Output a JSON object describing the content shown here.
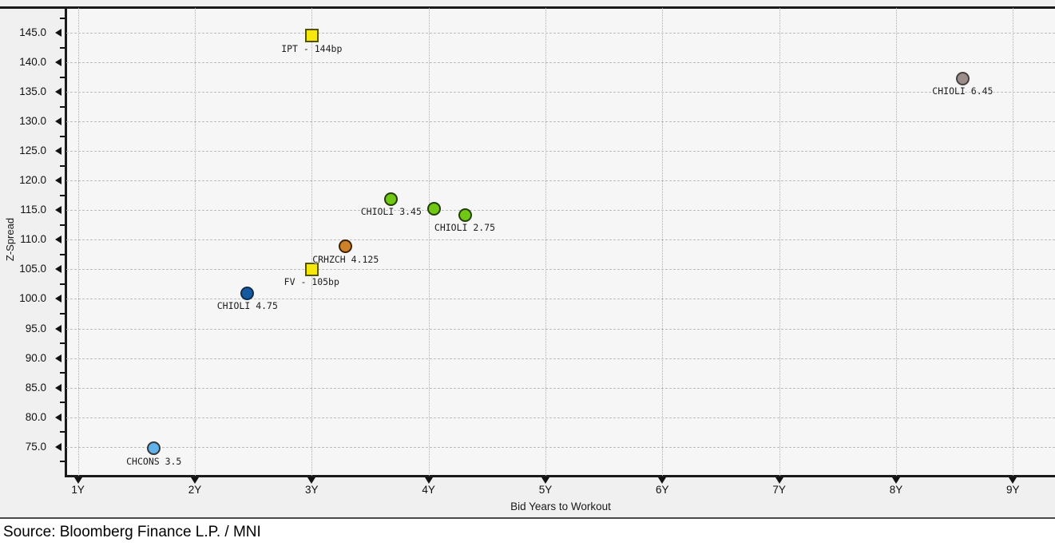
{
  "chart": {
    "y_axis_title": "Z-Spread",
    "x_axis_title": "Bid Years to Workout"
  },
  "caption": {
    "source_text": "Source: Bloomberg Finance L.P. / MNI"
  },
  "colors": {
    "axis": "#1a1a1a",
    "grid": "#b8b8b8",
    "plot_background": "#f5f6f5",
    "margin_background": "#eff0ef",
    "divider": "#4a4a4a"
  },
  "chart_data": {
    "type": "scatter",
    "title": "",
    "xlabel": "Bid Years to Workout",
    "ylabel": "Z-Spread",
    "xlim": [
      0.9,
      9.36
    ],
    "ylim": [
      70.1,
      149.2
    ],
    "grid": "major gridlines on, dashed horizontal / dotted vertical",
    "legend": "none; points labeled inline below markers",
    "x_ticks": [
      {
        "v": 1,
        "label": "1Y"
      },
      {
        "v": 2,
        "label": "2Y"
      },
      {
        "v": 3,
        "label": "3Y"
      },
      {
        "v": 4,
        "label": "4Y"
      },
      {
        "v": 5,
        "label": "5Y"
      },
      {
        "v": 6,
        "label": "6Y"
      },
      {
        "v": 7,
        "label": "7Y"
      },
      {
        "v": 8,
        "label": "8Y"
      },
      {
        "v": 9,
        "label": "9Y"
      }
    ],
    "y_ticks": [
      {
        "v": 75,
        "label": "75.0"
      },
      {
        "v": 80,
        "label": "80.0"
      },
      {
        "v": 85,
        "label": "85.0"
      },
      {
        "v": 90,
        "label": "90.0"
      },
      {
        "v": 95,
        "label": "95.0"
      },
      {
        "v": 100,
        "label": "100.0"
      },
      {
        "v": 105,
        "label": "105.0"
      },
      {
        "v": 110,
        "label": "110.0"
      },
      {
        "v": 115,
        "label": "115.0"
      },
      {
        "v": 120,
        "label": "120.0"
      },
      {
        "v": 125,
        "label": "125.0"
      },
      {
        "v": 130,
        "label": "130.0"
      },
      {
        "v": 135,
        "label": "135.0"
      },
      {
        "v": 140,
        "label": "140.0"
      },
      {
        "v": 145,
        "label": "145.0"
      }
    ],
    "y_minor_ticks": [
      72.5,
      77.5,
      82.5,
      87.5,
      92.5,
      97.5,
      102.5,
      107.5,
      112.5,
      117.5,
      122.5,
      127.5,
      132.5,
      137.5,
      142.5,
      147.5
    ],
    "points": [
      {
        "label": "CHCONS 3.5",
        "x": 1.65,
        "y": 74.7,
        "marker": "circle",
        "fill": "#62b1e8",
        "stroke": "#35383b"
      },
      {
        "label": "CHIOLI 4.75",
        "x": 2.45,
        "y": 101.0,
        "marker": "circle",
        "fill": "#155a9e",
        "stroke": "#0d2f55"
      },
      {
        "label": "FV - 105bp",
        "x": 3.0,
        "y": 105.0,
        "marker": "square",
        "fill": "#f6e70c",
        "stroke": "#52520f"
      },
      {
        "label": "IPT - 144bp",
        "x": 3.0,
        "y": 144.5,
        "marker": "square",
        "fill": "#f6e70c",
        "stroke": "#52520f"
      },
      {
        "label": "CRHZCH 4.125",
        "x": 3.29,
        "y": 108.9,
        "marker": "circle",
        "fill": "#cd8128",
        "stroke": "#3a2405"
      },
      {
        "label": "CHIOLI 3.45",
        "x": 3.68,
        "y": 116.9,
        "marker": "circle",
        "fill": "#70c714",
        "stroke": "#233f05"
      },
      {
        "label": "",
        "x": 4.05,
        "y": 115.2,
        "marker": "circle",
        "fill": "#70c714",
        "stroke": "#233f05"
      },
      {
        "label": "CHIOLI 2.75",
        "x": 4.31,
        "y": 114.2,
        "marker": "circle",
        "fill": "#70c714",
        "stroke": "#233f05"
      },
      {
        "label": "CHIOLI 6.45",
        "x": 8.57,
        "y": 137.3,
        "marker": "circle",
        "fill": "#9c8d8a",
        "stroke": "#474140"
      }
    ]
  }
}
